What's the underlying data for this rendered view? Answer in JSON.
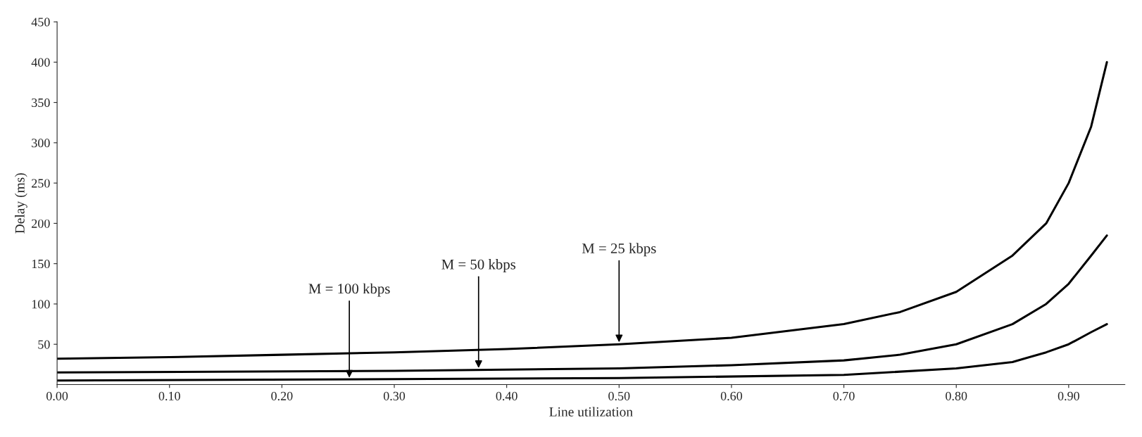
{
  "chart_data": {
    "type": "line",
    "xlabel": "Line utilization",
    "ylabel": "Delay (ms)",
    "xlim": [
      0,
      0.95
    ],
    "ylim": [
      0,
      450
    ],
    "xticks": [
      {
        "value": 0,
        "label": "0.00"
      },
      {
        "value": 0.1,
        "label": "0.10"
      },
      {
        "value": 0.2,
        "label": "0.20"
      },
      {
        "value": 0.3,
        "label": "0.30"
      },
      {
        "value": 0.4,
        "label": "0.40"
      },
      {
        "value": 0.5,
        "label": "0.50"
      },
      {
        "value": 0.6,
        "label": "0.60"
      },
      {
        "value": 0.7,
        "label": "0.70"
      },
      {
        "value": 0.8,
        "label": "0.80"
      },
      {
        "value": 0.9,
        "label": "0.90"
      }
    ],
    "yticks": [
      50,
      100,
      150,
      200,
      250,
      300,
      350,
      400,
      450
    ],
    "grid": false,
    "legend": false,
    "marker": "none",
    "line_style": "solid",
    "series": [
      {
        "color": "#000000",
        "x": [
          0,
          0.1,
          0.2,
          0.3,
          0.4,
          0.5,
          0.6,
          0.7,
          0.75,
          0.8,
          0.85,
          0.88,
          0.9,
          0.92,
          0.934
        ],
        "values": [
          32,
          34,
          37,
          40,
          44,
          50,
          58,
          75,
          90,
          115,
          160,
          200,
          250,
          320,
          400
        ]
      },
      {
        "color": "#000000",
        "x": [
          0,
          0.3,
          0.5,
          0.6,
          0.7,
          0.75,
          0.8,
          0.85,
          0.88,
          0.9,
          0.92,
          0.934
        ],
        "values": [
          15,
          17,
          20,
          24,
          30,
          37,
          50,
          75,
          100,
          125,
          160,
          185
        ]
      },
      {
        "color": "#000000",
        "x": [
          0,
          0.5,
          0.7,
          0.8,
          0.85,
          0.88,
          0.9,
          0.92,
          0.934
        ],
        "values": [
          5,
          8,
          12,
          20,
          28,
          40,
          50,
          65,
          75
        ]
      }
    ],
    "annotations": [
      {
        "text": "M = 25 kbps",
        "x": 0.5,
        "y": 50
      },
      {
        "text": "M = 50 kbps",
        "x": 0.375,
        "y": 18
      },
      {
        "text": "M = 100 kbps",
        "x": 0.26,
        "y": 6
      }
    ]
  }
}
